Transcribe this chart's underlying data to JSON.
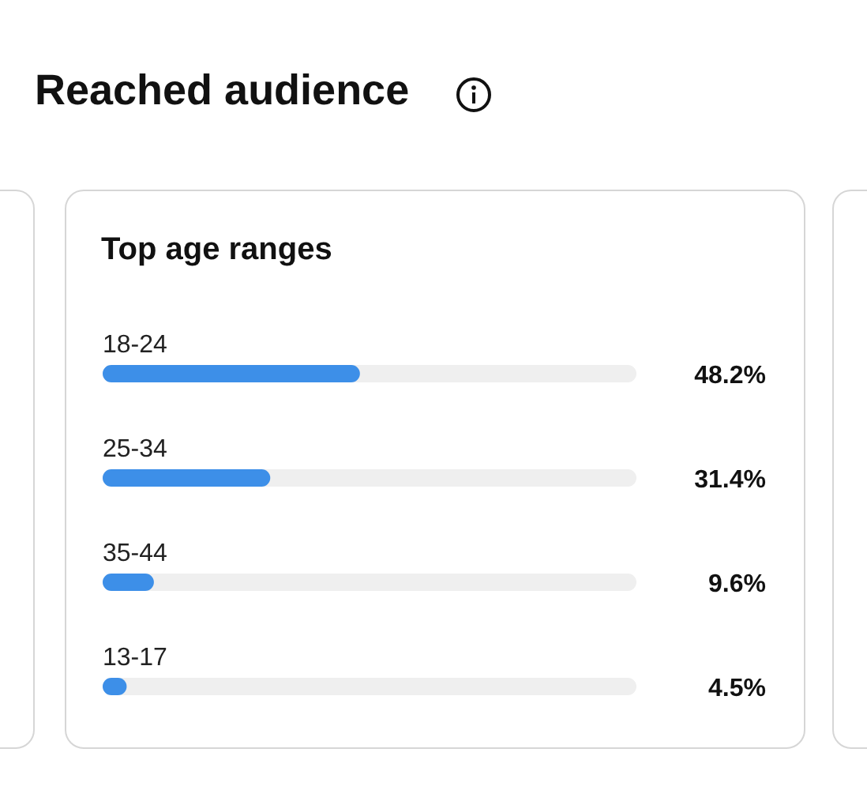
{
  "chart_data": {
    "type": "bar",
    "orientation": "horizontal",
    "title": "Reached audience",
    "subtitle": "Top age ranges",
    "categories": [
      "18-24",
      "25-34",
      "35-44",
      "13-17"
    ],
    "values": [
      48.2,
      31.4,
      9.6,
      4.5
    ],
    "value_labels": [
      "48.2%",
      "31.4%",
      "9.6%",
      "4.5%"
    ],
    "color": "#3d8fe8",
    "xlim": [
      0,
      100
    ],
    "tick_labels": "y"
  }
}
